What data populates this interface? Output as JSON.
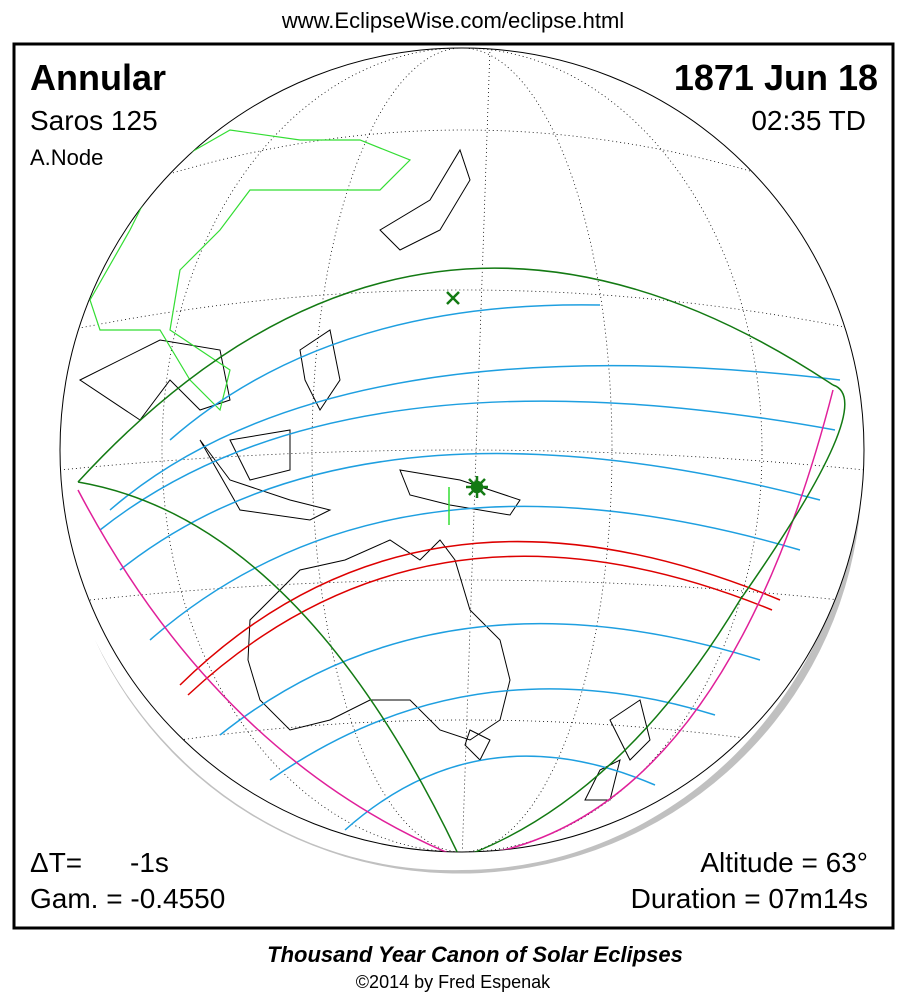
{
  "header": {
    "url": "www.EclipseWise.com/eclipse.html"
  },
  "eclipse": {
    "type": "Annular",
    "saros": "Saros 125",
    "node": "A.Node",
    "date": "1871 Jun 18",
    "time": "02:35 TD"
  },
  "stats": {
    "delta_t_label": "ΔT=",
    "delta_t_value": "-1s",
    "gamma": "Gam. = -0.4550",
    "altitude": "Altitude = 63°",
    "duration": "Duration = 07m14s"
  },
  "footer": {
    "title": "Thousand Year Canon of Solar Eclipses",
    "copyright": "©2014 by Fred Espenak"
  }
}
